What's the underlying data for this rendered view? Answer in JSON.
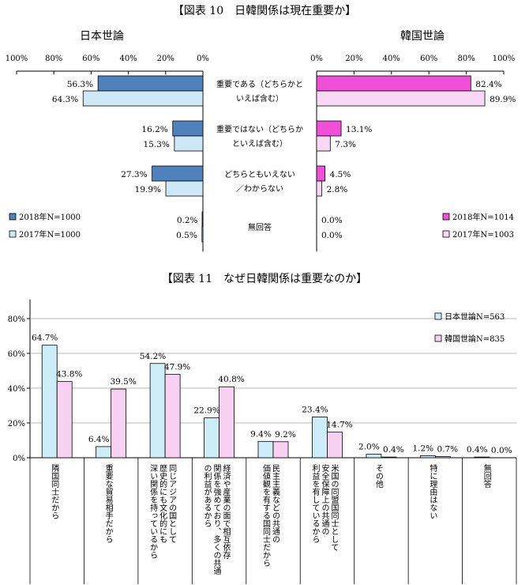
{
  "chart_data": [
    {
      "type": "bar",
      "orientation": "horizontal-butterfly",
      "title": "【図表 10　日韓関係は現在重要か】",
      "left_panel_title": "日本世論",
      "right_panel_title": "韓国世論",
      "axis_ticks_left": [
        "100%",
        "80%",
        "60%",
        "40%",
        "20%",
        "0%"
      ],
      "axis_ticks_right": [
        "0%",
        "20%",
        "40%",
        "60%",
        "80%",
        "100%"
      ],
      "xlim": [
        0,
        100
      ],
      "categories": [
        [
          "重要である（どちらかと",
          "いえば含む）"
        ],
        [
          "重要ではない（どちらか",
          "といえば含む）"
        ],
        [
          "どちらともいえない",
          "／わからない"
        ],
        [
          "無回答"
        ]
      ],
      "left_series": [
        {
          "name": "2018年N=1000",
          "color": "#4f81bd",
          "values": [
            56.3,
            16.2,
            27.3,
            0.2
          ],
          "labels": [
            "56.3%",
            "16.2%",
            "27.3%",
            "0.2%"
          ]
        },
        {
          "name": "2017年N=1000",
          "color": "#cfe8f6",
          "values": [
            64.3,
            15.3,
            19.9,
            0.5
          ],
          "labels": [
            "64.3%",
            "15.3%",
            "19.9%",
            "0.5%"
          ]
        }
      ],
      "right_series": [
        {
          "name": "2018年N=1014",
          "color": "#f050d8",
          "values": [
            82.4,
            13.1,
            4.5,
            0.0
          ],
          "labels": [
            "82.4%",
            "13.1%",
            "4.5%",
            "0.0%"
          ]
        },
        {
          "name": "2017年N=1003",
          "color": "#f8d8f4",
          "values": [
            89.9,
            7.3,
            2.8,
            0.0
          ],
          "labels": [
            "89.9%",
            "7.3%",
            "2.8%",
            "0.0%"
          ]
        }
      ],
      "legend_position": "bottom-left / bottom-right"
    },
    {
      "type": "bar",
      "title": "【図表 11　なぜ日韓関係は重要なのか】",
      "ylim": [
        0,
        80
      ],
      "yticks": [
        "0%",
        "20%",
        "40%",
        "60%",
        "80%"
      ],
      "categories": [
        [
          "隣国同士だから"
        ],
        [
          "重要な貿易相手だから"
        ],
        [
          "深い関係を持っているから",
          "歴史的にも文化的にも",
          "同じアジアの国として"
        ],
        [
          "の利益があるから",
          "関係を強めており、多くの共通",
          "経済や産業の面で相互依存"
        ],
        [
          "価値観を有する国同士だから",
          "民主主義などの共通の"
        ],
        [
          "利益を有しているから",
          "安全保障上の共通の",
          "米国の同盟国同士として"
        ],
        [
          "その他"
        ],
        [
          "特に理由はない"
        ],
        [
          "無回答"
        ]
      ],
      "series": [
        {
          "name": "日本世論N=563",
          "color": "#ccecf8",
          "values": [
            64.7,
            6.4,
            54.2,
            22.9,
            9.4,
            23.4,
            2.0,
            1.2,
            0.4
          ],
          "labels": [
            "64.7%",
            "6.4%",
            "54.2%",
            "22.9%",
            "9.4%",
            "23.4%",
            "2.0%",
            "1.2%",
            "0.4%"
          ]
        },
        {
          "name": "韓国世論N=835",
          "color": "#f8d0f2",
          "values": [
            43.8,
            39.5,
            47.9,
            40.8,
            9.2,
            14.7,
            0.4,
            0.7,
            0.0
          ],
          "labels": [
            "43.8%",
            "39.5%",
            "47.9%",
            "40.8%",
            "9.2%",
            "14.7%",
            "0.4%",
            "0.7%",
            "0.0%"
          ]
        }
      ],
      "legend_position": "top-right"
    }
  ]
}
